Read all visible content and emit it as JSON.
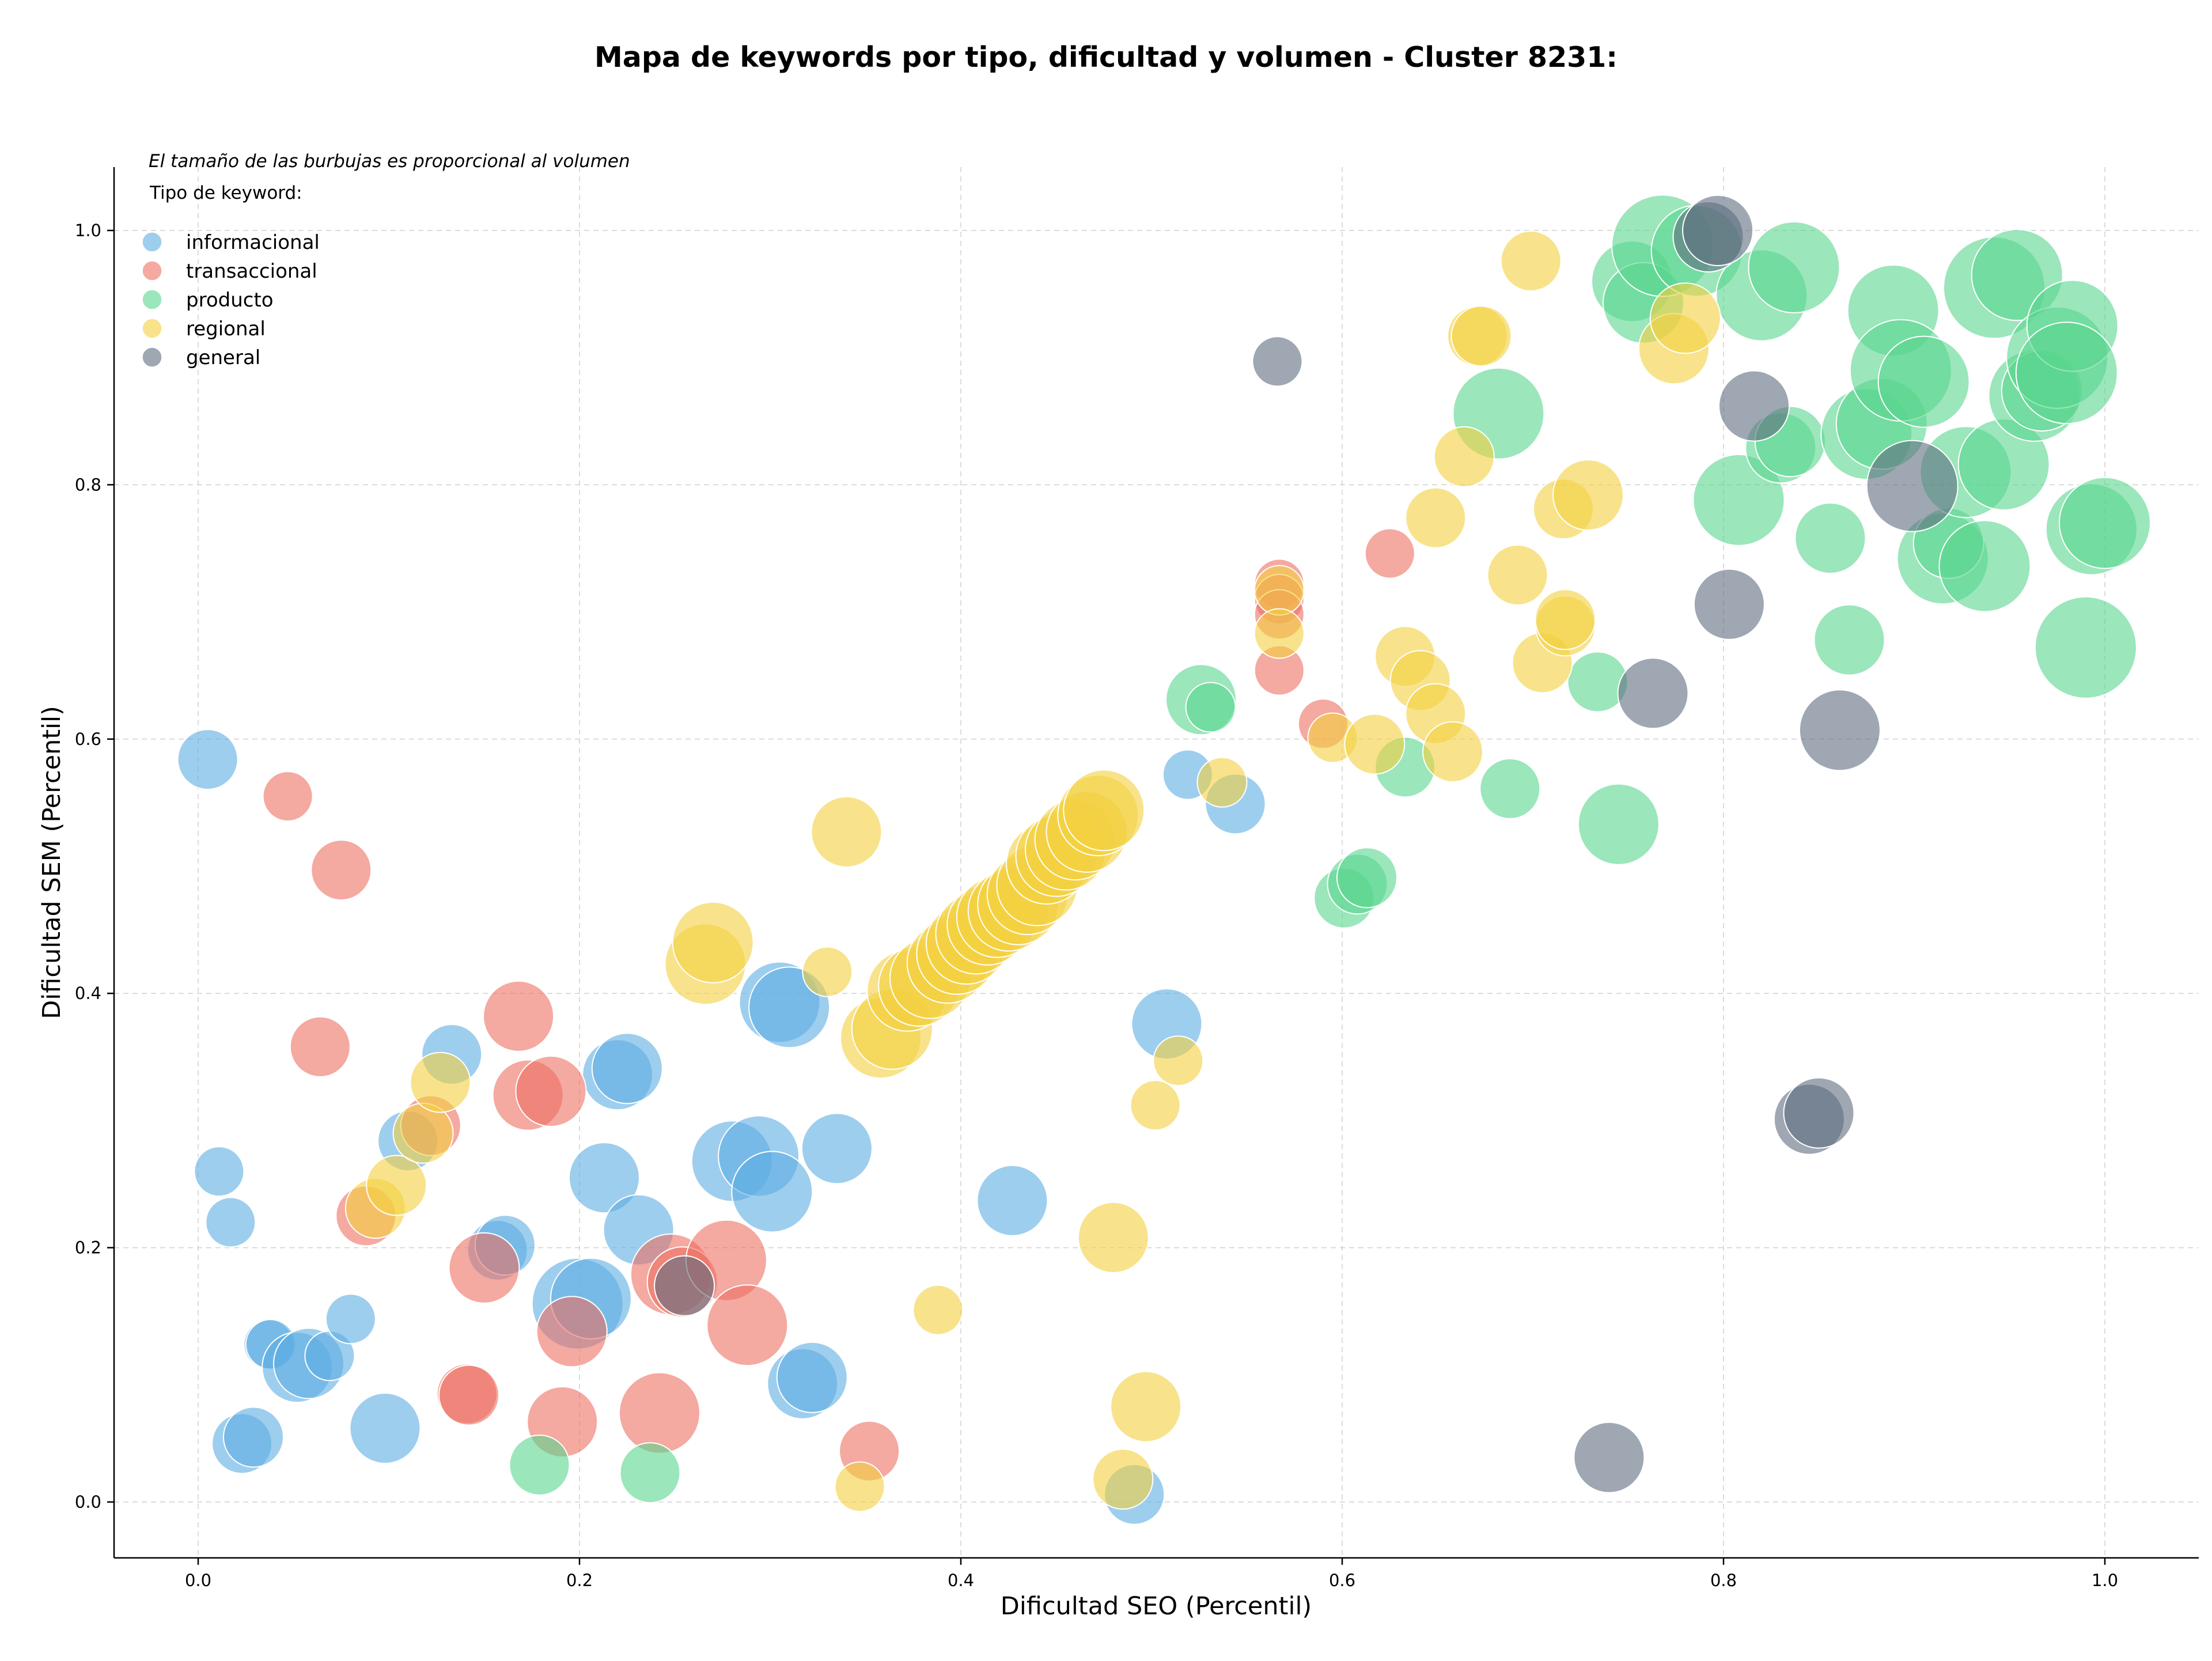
{
  "chart_data": {
    "type": "scatter",
    "title": "Mapa de keywords por tipo, dificultad y volumen - Cluster 8231:",
    "xlabel": "Dificultad SEO (Percentil)",
    "ylabel": "Dificultad SEM (Percentil)",
    "xlim": [
      -0.04,
      1.05
    ],
    "ylim": [
      -0.04,
      1.05
    ],
    "x_ticks": [
      "0.0",
      "0.2",
      "0.4",
      "0.6",
      "0.8",
      "1.0"
    ],
    "y_ticks": [
      "0.0",
      "0.2",
      "0.4",
      "0.6",
      "0.8",
      "1.0"
    ],
    "grid": true,
    "bubble_note": "El tamaño de las burbujas es proporcional al volumen",
    "legend_title": "Tipo de keyword:",
    "legend_position": "top-left",
    "series": [
      {
        "name": "informacional",
        "color": "#5DADE2",
        "points": [
          [
            0.005,
            0.584,
            3
          ],
          [
            0.011,
            0.26,
            2
          ],
          [
            0.017,
            0.22,
            2
          ],
          [
            0.023,
            0.046,
            3
          ],
          [
            0.029,
            0.051,
            3
          ],
          [
            0.037,
            0.124,
            2
          ],
          [
            0.038,
            0.124,
            2
          ],
          [
            0.052,
            0.106,
            4
          ],
          [
            0.058,
            0.109,
            4
          ],
          [
            0.069,
            0.115,
            2
          ],
          [
            0.08,
            0.144,
            2
          ],
          [
            0.098,
            0.058,
            4
          ],
          [
            0.11,
            0.284,
            3
          ],
          [
            0.133,
            0.352,
            3
          ],
          [
            0.157,
            0.198,
            3
          ],
          [
            0.161,
            0.202,
            3
          ],
          [
            0.199,
            0.156,
            6
          ],
          [
            0.206,
            0.16,
            5
          ],
          [
            0.213,
            0.255,
            4
          ],
          [
            0.22,
            0.336,
            4
          ],
          [
            0.225,
            0.341,
            4
          ],
          [
            0.231,
            0.214,
            4
          ],
          [
            0.28,
            0.268,
            5
          ],
          [
            0.294,
            0.272,
            5
          ],
          [
            0.301,
            0.244,
            5
          ],
          [
            0.305,
            0.393,
            5
          ],
          [
            0.31,
            0.389,
            5
          ],
          [
            0.317,
            0.093,
            4
          ],
          [
            0.322,
            0.098,
            4
          ],
          [
            0.335,
            0.278,
            4
          ],
          [
            0.427,
            0.237,
            4
          ],
          [
            0.491,
            0.006,
            3
          ],
          [
            0.508,
            0.376,
            4
          ],
          [
            0.519,
            0.572,
            2
          ],
          [
            0.544,
            0.549,
            3
          ]
        ]
      },
      {
        "name": "transaccional",
        "color": "#EC7063",
        "points": [
          [
            0.047,
            0.555,
            2
          ],
          [
            0.075,
            0.497,
            3
          ],
          [
            0.064,
            0.358,
            3
          ],
          [
            0.088,
            0.225,
            3
          ],
          [
            0.122,
            0.296,
            3
          ],
          [
            0.141,
            0.085,
            3
          ],
          [
            0.142,
            0.084,
            3
          ],
          [
            0.15,
            0.184,
            4
          ],
          [
            0.168,
            0.382,
            4
          ],
          [
            0.173,
            0.32,
            4
          ],
          [
            0.185,
            0.323,
            4
          ],
          [
            0.191,
            0.063,
            4
          ],
          [
            0.196,
            0.134,
            4
          ],
          [
            0.242,
            0.07,
            5
          ],
          [
            0.248,
            0.179,
            5
          ],
          [
            0.254,
            0.173,
            4
          ],
          [
            0.277,
            0.19,
            5
          ],
          [
            0.288,
            0.139,
            5
          ],
          [
            0.352,
            0.04,
            3
          ],
          [
            0.567,
            0.722,
            2
          ],
          [
            0.567,
            0.71,
            2
          ],
          [
            0.567,
            0.698,
            2
          ],
          [
            0.567,
            0.654,
            2
          ],
          [
            0.59,
            0.612,
            2
          ],
          [
            0.625,
            0.746,
            2
          ]
        ]
      },
      {
        "name": "producto",
        "color": "#58D68D",
        "points": [
          [
            0.179,
            0.029,
            3
          ],
          [
            0.237,
            0.023,
            3
          ],
          [
            0.526,
            0.631,
            4
          ],
          [
            0.531,
            0.625,
            2
          ],
          [
            0.601,
            0.475,
            3
          ],
          [
            0.608,
            0.486,
            3
          ],
          [
            0.613,
            0.491,
            3
          ],
          [
            0.633,
            0.578,
            3
          ],
          [
            0.682,
            0.856,
            6
          ],
          [
            0.688,
            0.561,
            3
          ],
          [
            0.734,
            0.645,
            3
          ],
          [
            0.745,
            0.533,
            5
          ],
          [
            0.752,
            0.96,
            5
          ],
          [
            0.758,
            0.943,
            5
          ],
          [
            0.768,
            0.988,
            7
          ],
          [
            0.786,
            0.984,
            6
          ],
          [
            0.808,
            0.788,
            6
          ],
          [
            0.82,
            0.949,
            6
          ],
          [
            0.83,
            0.829,
            4
          ],
          [
            0.835,
            0.834,
            4
          ],
          [
            0.837,
            0.971,
            6
          ],
          [
            0.856,
            0.758,
            4
          ],
          [
            0.866,
            0.678,
            4
          ],
          [
            0.875,
            0.84,
            6
          ],
          [
            0.883,
            0.848,
            6
          ],
          [
            0.889,
            0.937,
            6
          ],
          [
            0.893,
            0.89,
            7
          ],
          [
            0.905,
            0.881,
            6
          ],
          [
            0.915,
            0.742,
            6
          ],
          [
            0.918,
            0.754,
            4
          ],
          [
            0.927,
            0.81,
            6
          ],
          [
            0.937,
            0.736,
            6
          ],
          [
            0.942,
            0.955,
            7
          ],
          [
            0.947,
            0.816,
            6
          ],
          [
            0.954,
            0.965,
            6
          ],
          [
            0.963,
            0.87,
            6
          ],
          [
            0.967,
            0.874,
            5
          ],
          [
            0.975,
            0.9,
            7
          ],
          [
            0.983,
            0.925,
            6
          ],
          [
            0.98,
            0.888,
            7
          ],
          [
            0.99,
            0.672,
            7
          ],
          [
            0.993,
            0.765,
            6
          ],
          [
            1.0,
            0.77,
            6
          ]
        ]
      },
      {
        "name": "regional",
        "color": "#F4D03F",
        "points": [
          [
            0.093,
            0.231,
            3
          ],
          [
            0.104,
            0.249,
            3
          ],
          [
            0.118,
            0.29,
            3
          ],
          [
            0.127,
            0.33,
            3
          ],
          [
            0.266,
            0.423,
            5
          ],
          [
            0.27,
            0.44,
            5
          ],
          [
            0.33,
            0.417,
            2
          ],
          [
            0.34,
            0.527,
            4
          ],
          [
            0.347,
            0.012,
            2
          ],
          [
            0.358,
            0.365,
            5
          ],
          [
            0.364,
            0.372,
            5
          ],
          [
            0.372,
            0.402,
            5
          ],
          [
            0.378,
            0.406,
            5
          ],
          [
            0.384,
            0.412,
            5
          ],
          [
            0.388,
            0.151,
            2
          ],
          [
            0.393,
            0.424,
            5
          ],
          [
            0.398,
            0.431,
            5
          ],
          [
            0.403,
            0.439,
            5
          ],
          [
            0.408,
            0.447,
            5
          ],
          [
            0.414,
            0.454,
            5
          ],
          [
            0.419,
            0.46,
            5
          ],
          [
            0.425,
            0.465,
            5
          ],
          [
            0.43,
            0.47,
            5
          ],
          [
            0.435,
            0.478,
            5
          ],
          [
            0.44,
            0.485,
            5
          ],
          [
            0.445,
            0.502,
            5
          ],
          [
            0.45,
            0.508,
            5
          ],
          [
            0.455,
            0.513,
            5
          ],
          [
            0.46,
            0.521,
            5
          ],
          [
            0.466,
            0.527,
            5
          ],
          [
            0.472,
            0.54,
            5
          ],
          [
            0.475,
            0.544,
            5
          ],
          [
            0.48,
            0.208,
            4
          ],
          [
            0.485,
            0.018,
            3
          ],
          [
            0.497,
            0.075,
            4
          ],
          [
            0.502,
            0.312,
            2
          ],
          [
            0.514,
            0.347,
            2
          ],
          [
            0.537,
            0.566,
            2
          ],
          [
            0.567,
            0.717,
            2
          ],
          [
            0.567,
            0.683,
            2
          ],
          [
            0.595,
            0.601,
            2
          ],
          [
            0.617,
            0.596,
            3
          ],
          [
            0.633,
            0.665,
            3
          ],
          [
            0.641,
            0.646,
            3
          ],
          [
            0.649,
            0.774,
            3
          ],
          [
            0.649,
            0.62,
            3
          ],
          [
            0.658,
            0.59,
            3
          ],
          [
            0.664,
            0.822,
            3
          ],
          [
            0.671,
            0.917,
            3
          ],
          [
            0.673,
            0.917,
            3
          ],
          [
            0.692,
            0.729,
            3
          ],
          [
            0.699,
            0.976,
            3
          ],
          [
            0.705,
            0.66,
            3
          ],
          [
            0.716,
            0.781,
            3
          ],
          [
            0.717,
            0.689,
            3
          ],
          [
            0.717,
            0.694,
            3
          ],
          [
            0.729,
            0.792,
            4
          ],
          [
            0.774,
            0.907,
            4
          ],
          [
            0.78,
            0.931,
            4
          ]
        ]
      },
      {
        "name": "general",
        "color": "#5D6D7E",
        "points": [
          [
            0.255,
            0.17,
            3
          ],
          [
            0.566,
            0.897,
            2
          ],
          [
            0.74,
            0.035,
            4
          ],
          [
            0.763,
            0.636,
            4
          ],
          [
            0.792,
            0.995,
            4
          ],
          [
            0.797,
            1.0,
            4
          ],
          [
            0.803,
            0.706,
            4
          ],
          [
            0.816,
            0.862,
            4
          ],
          [
            0.845,
            0.301,
            4
          ],
          [
            0.85,
            0.306,
            4
          ],
          [
            0.861,
            0.607,
            5
          ],
          [
            0.899,
            0.799,
            6
          ]
        ]
      }
    ]
  }
}
